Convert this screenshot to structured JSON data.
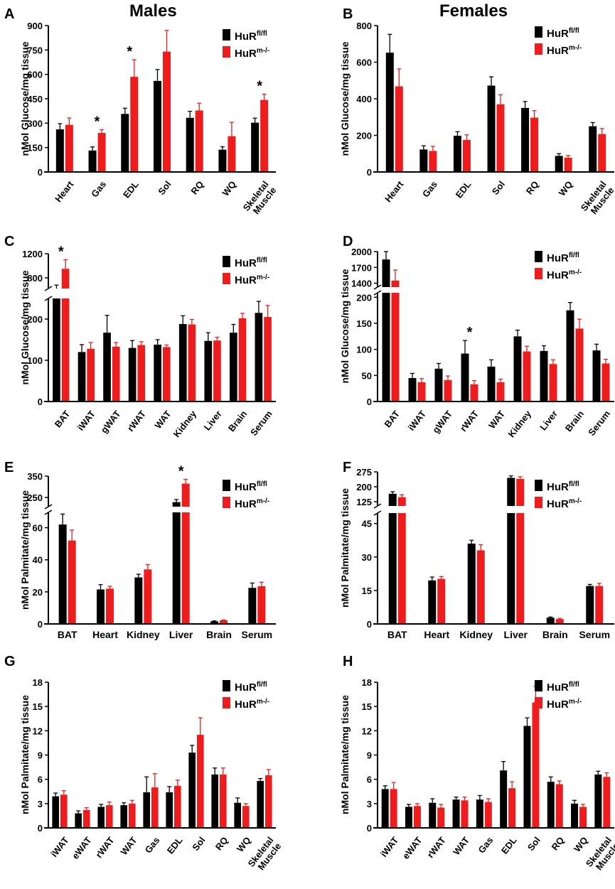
{
  "page": {
    "column_titles": [
      "Males",
      "Females"
    ]
  },
  "legend": {
    "base": "HuR",
    "series": [
      {
        "sup": "fl/fl",
        "color": "#000000"
      },
      {
        "sup": "m-/-",
        "color": "#ee1c1c"
      }
    ]
  },
  "chart_data": [
    {
      "type": "bar",
      "panel": "A",
      "ylabel": "nMol Glucose/mg tissue",
      "categories": [
        "Heart",
        "Gas",
        "EDL",
        "Sol",
        "RQ",
        "WQ",
        "Skeletal Muscle"
      ],
      "ylim": [
        0,
        900
      ],
      "yticks": [
        "0",
        "150",
        "300",
        "450",
        "600",
        "750",
        "900"
      ],
      "series": [
        {
          "name": "HuR fl/fl",
          "values": [
            262,
            132,
            357,
            560,
            333,
            137,
            303
          ],
          "errors": [
            35,
            22,
            35,
            70,
            40,
            18,
            28
          ]
        },
        {
          "name": "HuR m-/-",
          "values": [
            290,
            240,
            585,
            740,
            378,
            220,
            443
          ],
          "errors": [
            42,
            20,
            105,
            130,
            45,
            85,
            35
          ]
        }
      ],
      "significance": [
        {
          "category": "Gas",
          "label": "*"
        },
        {
          "category": "EDL",
          "label": "*"
        },
        {
          "category": "Skeletal Muscle",
          "label": "*"
        }
      ]
    },
    {
      "type": "bar",
      "panel": "B",
      "ylabel": "nMol Glucose/mg tissue",
      "categories": [
        "Heart",
        "Gas",
        "EDL",
        "Sol",
        "RQ",
        "WQ",
        "Skeletal Muscle"
      ],
      "ylim": [
        0,
        800
      ],
      "yticks": [
        "0",
        "200",
        "400",
        "600",
        "800"
      ],
      "series": [
        {
          "name": "HuR fl/fl",
          "values": [
            652,
            123,
            198,
            472,
            350,
            88,
            250
          ],
          "errors": [
            100,
            20,
            22,
            48,
            35,
            12,
            20
          ]
        },
        {
          "name": "HuR m-/-",
          "values": [
            468,
            115,
            175,
            370,
            297,
            78,
            207
          ],
          "errors": [
            95,
            25,
            28,
            52,
            38,
            12,
            30
          ]
        }
      ],
      "significance": []
    },
    {
      "type": "bar",
      "panel": "C",
      "ylabel": "nMol Glucose/mg tissue",
      "categories": [
        "BAT",
        "iWAT",
        "gWAT",
        "rWAT",
        "WAT",
        "Kidney",
        "Liver",
        "Brain",
        "Serum"
      ],
      "ylim": [
        0,
        1200
      ],
      "axis_break": [
        250,
        600
      ],
      "yticks": [
        "0",
        "100",
        "200",
        "800",
        "1200"
      ],
      "series": [
        {
          "name": "HuR fl/fl",
          "values": [
            620,
            120,
            167,
            130,
            138,
            188,
            147,
            167,
            215
          ],
          "errors": [
            60,
            18,
            42,
            18,
            12,
            20,
            20,
            20,
            28
          ]
        },
        {
          "name": "HuR m-/-",
          "values": [
            950,
            128,
            133,
            137,
            132,
            187,
            148,
            202,
            205
          ],
          "errors": [
            150,
            15,
            10,
            8,
            5,
            12,
            8,
            12,
            28
          ]
        }
      ],
      "significance": [
        {
          "category": "BAT",
          "label": "*"
        }
      ]
    },
    {
      "type": "bar",
      "panel": "D",
      "ylabel": "nMol Glucose/mg tissue",
      "categories": [
        "BAT",
        "iWAT",
        "gWAT",
        "rWAT",
        "WAT",
        "Kidney",
        "Liver",
        "Brain",
        "Serum"
      ],
      "ylim": [
        0,
        2000
      ],
      "axis_break": [
        210,
        1300
      ],
      "yticks": [
        "0",
        "50",
        "100",
        "150",
        "200",
        "1400",
        "1700",
        "2000"
      ],
      "series": [
        {
          "name": "HuR fl/fl",
          "values": [
            1850,
            45,
            63,
            92,
            67,
            125,
            97,
            175,
            98
          ],
          "errors": [
            150,
            9,
            10,
            25,
            13,
            12,
            10,
            15,
            12
          ]
        },
        {
          "name": "HuR m-/-",
          "values": [
            1450,
            37,
            41,
            33,
            37,
            96,
            72,
            140,
            73
          ],
          "errors": [
            200,
            7,
            8,
            7,
            6,
            10,
            8,
            18,
            8
          ]
        }
      ],
      "significance": [
        {
          "category": "rWAT",
          "label": "*"
        }
      ]
    },
    {
      "type": "bar",
      "panel": "E",
      "ylabel": "nMol Palmitate/mg tissue",
      "categories": [
        "BAT",
        "Heart",
        "Kidney",
        "Liver",
        "Brain",
        "Serum"
      ],
      "ylim": [
        0,
        350
      ],
      "axis_break": [
        70,
        200
      ],
      "yticks": [
        "0",
        "20",
        "40",
        "60",
        "250",
        "350"
      ],
      "series": [
        {
          "name": "HuR fl/fl",
          "values": [
            62,
            21.5,
            29,
            228,
            1.6,
            22.5
          ],
          "errors": [
            6.5,
            3,
            2,
            12,
            0.3,
            3
          ]
        },
        {
          "name": "HuR m-/-",
          "values": [
            52,
            22,
            34,
            315,
            2.2,
            23.5
          ],
          "errors": [
            6.5,
            1.5,
            3,
            20,
            0.3,
            2.5
          ]
        }
      ],
      "significance": [
        {
          "category": "Liver",
          "label": "*"
        }
      ]
    },
    {
      "type": "bar",
      "panel": "F",
      "ylabel": "nMol Palmitate/mg tissue",
      "categories": [
        "BAT",
        "Heart",
        "Kidney",
        "Liver",
        "Brain",
        "Serum"
      ],
      "ylim": [
        0,
        275
      ],
      "axis_break": [
        50,
        100
      ],
      "yticks": [
        "0",
        "15",
        "30",
        "45",
        "125",
        "200",
        "275"
      ],
      "series": [
        {
          "name": "HuR fl/fl",
          "values": [
            165,
            19.5,
            36,
            245,
            2.8,
            17
          ],
          "errors": [
            10,
            1.5,
            1.5,
            10,
            0.3,
            0.7
          ]
        },
        {
          "name": "HuR m-/-",
          "values": [
            148,
            20.2,
            33,
            240,
            2.2,
            17
          ],
          "errors": [
            12,
            1,
            2.5,
            10,
            0.3,
            1.2
          ]
        }
      ],
      "significance": []
    },
    {
      "type": "bar",
      "panel": "G",
      "ylabel": "nMol Palmitate/mg tissue",
      "categories": [
        "iWAT",
        "eWAT",
        "rWAT",
        "WAT",
        "Gas",
        "EDL",
        "Sol",
        "RQ",
        "WQ",
        "Skeletal Muscle"
      ],
      "ylim": [
        0,
        18
      ],
      "yticks": [
        "0",
        "3",
        "6",
        "9",
        "12",
        "15",
        "18"
      ],
      "series": [
        {
          "name": "HuR fl/fl",
          "values": [
            3.9,
            1.8,
            2.6,
            2.8,
            4.4,
            4.4,
            9.3,
            6.6,
            3.1,
            5.8
          ],
          "errors": [
            0.4,
            0.3,
            0.3,
            0.3,
            1.9,
            0.7,
            0.9,
            0.8,
            0.6,
            0.3
          ]
        },
        {
          "name": "HuR m-/-",
          "values": [
            4.1,
            2.2,
            2.8,
            3.0,
            5.0,
            5.2,
            11.5,
            6.6,
            2.7,
            6.5
          ],
          "errors": [
            0.5,
            0.3,
            0.4,
            0.4,
            1.7,
            0.7,
            2.1,
            0.8,
            0.3,
            0.7
          ]
        }
      ],
      "significance": []
    },
    {
      "type": "bar",
      "panel": "H",
      "ylabel": "nMol Palmitate/mg tissue",
      "categories": [
        "iWAT",
        "eWAT",
        "rWAT",
        "WAT",
        "Gas",
        "EDL",
        "Sol",
        "RQ",
        "WQ",
        "Skeletal Muscle"
      ],
      "ylim": [
        0,
        18
      ],
      "yticks": [
        "0",
        "3",
        "6",
        "9",
        "12",
        "15",
        "18"
      ],
      "series": [
        {
          "name": "HuR fl/fl",
          "values": [
            4.8,
            2.6,
            3.1,
            3.5,
            3.5,
            7.1,
            12.6,
            5.7,
            3.0,
            6.6
          ],
          "errors": [
            0.4,
            0.3,
            0.5,
            0.3,
            0.5,
            1.1,
            1.0,
            0.6,
            0.4,
            0.4
          ]
        },
        {
          "name": "HuR m-/-",
          "values": [
            4.8,
            2.7,
            2.5,
            3.4,
            3.2,
            4.9,
            15.5,
            5.4,
            2.6,
            6.3
          ],
          "errors": [
            0.8,
            0.3,
            0.4,
            0.4,
            0.4,
            0.8,
            2.0,
            0.4,
            0.3,
            0.5
          ]
        }
      ],
      "significance": []
    }
  ]
}
